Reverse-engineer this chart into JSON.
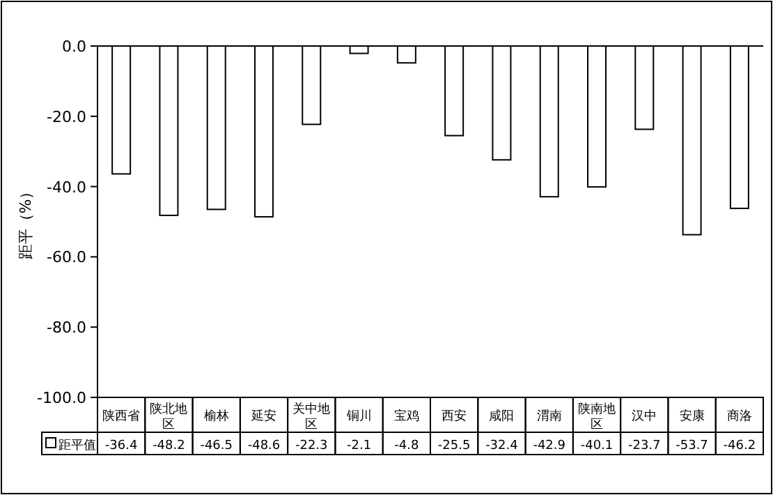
{
  "chart_data": {
    "type": "bar",
    "ylabel": "距平（%）",
    "categories": [
      "陕西省",
      "陕北地区",
      "榆林",
      "延安",
      "关中地区",
      "铜川",
      "宝鸡",
      "西安",
      "咸阳",
      "渭南",
      "陕南地区",
      "汉中",
      "安康",
      "商洛"
    ],
    "series": [
      {
        "name": "距平值",
        "color": "#ffffff",
        "values": [
          -36.4,
          -48.2,
          -46.5,
          -48.6,
          -22.3,
          -2.1,
          -4.8,
          -25.5,
          -32.4,
          -42.9,
          -40.1,
          -23.7,
          -53.7,
          -46.2
        ]
      }
    ],
    "ylim": [
      -100,
      0
    ],
    "yticks": [
      {
        "value": 0,
        "label": "0.0"
      },
      {
        "value": -20,
        "label": "-20.0"
      },
      {
        "value": -40,
        "label": "-40.0"
      },
      {
        "value": -60,
        "label": "-60.0"
      },
      {
        "value": -80,
        "label": "-80.0"
      },
      {
        "value": -100,
        "label": "-100.0"
      }
    ],
    "data_labels": true,
    "legend": "bottom",
    "grid": false
  }
}
